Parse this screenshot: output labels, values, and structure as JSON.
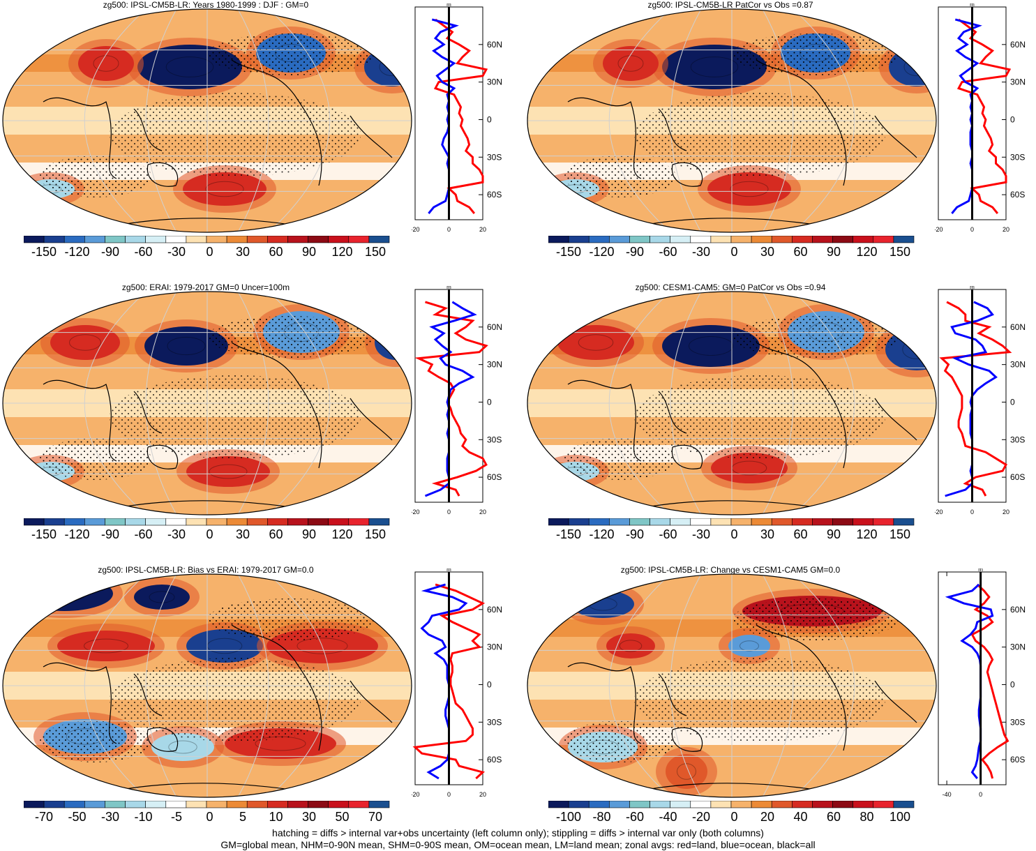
{
  "footer": {
    "line1": "hatching = diffs > internal var+obs uncertainty (left column only); stippling = diffs > internal var only (both columns)",
    "line2": "GM=global mean, NHM=0-90N mean, SHM=0-90S mean, OM=ocean mean, LM=land mean; zonal avgs: red=land, blue=ocean, black=all"
  },
  "colors": {
    "scale": [
      "#0b1a5c",
      "#1a3f8f",
      "#2a6bc0",
      "#5a9bd8",
      "#7fc6c6",
      "#a8d8e8",
      "#d6eff5",
      "#ffffff",
      "#fde2b3",
      "#f6b26b",
      "#ec8a36",
      "#e0582a",
      "#d62b21",
      "#b8121c",
      "#8c0a14",
      "#c9101c",
      "#e8232d",
      "#1a4f8f"
    ],
    "land": "#ff0000",
    "ocean": "#0000ff",
    "all": "#000000"
  },
  "chart_data": [
    {
      "type": "heatmap",
      "title": "zg500: IPSL-CM5B-LR: Years 1980-1999 : DJF : GM=0",
      "colorbar_labels": [
        "-150",
        "-120",
        "-90",
        "-60",
        "-30",
        "0",
        "30",
        "60",
        "90",
        "120",
        "150"
      ],
      "profile": {
        "unit": "m",
        "xticks": [
          "-20",
          "0",
          "20"
        ],
        "yticks": [
          "60N",
          "30N",
          "0",
          "30S",
          "60S"
        ],
        "lat": [
          80,
          75,
          70,
          65,
          60,
          55,
          50,
          45,
          40,
          35,
          30,
          25,
          20,
          15,
          10,
          5,
          0,
          -5,
          -10,
          -15,
          -20,
          -25,
          -30,
          -35,
          -40,
          -45,
          -50,
          -55,
          -60,
          -65,
          -70,
          -75
        ],
        "ocean": [
          -10,
          4,
          -5,
          -8,
          -3,
          -9,
          -4,
          3,
          -2,
          -7,
          -4,
          3,
          -1,
          0,
          -1,
          0,
          -1,
          0,
          -1,
          -3,
          -4,
          -2,
          0,
          -1,
          0,
          0,
          0,
          0,
          -1,
          -2,
          -9,
          -12
        ],
        "land": [
          -8,
          -3,
          2,
          -1,
          6,
          12,
          8,
          5,
          22,
          20,
          -6,
          -8,
          3,
          5,
          7,
          6,
          8,
          7,
          9,
          11,
          12,
          10,
          14,
          14,
          18,
          20,
          20,
          0,
          4,
          5,
          12,
          15
        ]
      }
    },
    {
      "type": "heatmap",
      "title": "zg500: IPSL-CM5B-LR PatCor vs Obs =0.87",
      "colorbar_labels": [
        "-150",
        "-120",
        "-90",
        "-60",
        "-30",
        "0",
        "30",
        "60",
        "90",
        "120",
        "150"
      ],
      "profile": {
        "unit": "m",
        "xticks": [
          "-20",
          "0",
          "20"
        ],
        "yticks": [
          "60N",
          "30N",
          "0",
          "30S",
          "60S"
        ],
        "lat": [
          80,
          75,
          70,
          65,
          60,
          55,
          50,
          45,
          40,
          35,
          30,
          25,
          20,
          15,
          10,
          5,
          0,
          -5,
          -10,
          -15,
          -20,
          -25,
          -30,
          -35,
          -40,
          -45,
          -50,
          -55,
          -60,
          -65,
          -70,
          -75
        ],
        "ocean": [
          -10,
          4,
          -5,
          -8,
          -3,
          -9,
          -4,
          3,
          -2,
          -7,
          -4,
          3,
          -1,
          0,
          -1,
          0,
          -1,
          0,
          -1,
          -1,
          -1,
          0,
          0,
          -1,
          0,
          0,
          0,
          0,
          -1,
          -2,
          -9,
          -12
        ],
        "land": [
          -8,
          -3,
          2,
          -1,
          6,
          12,
          8,
          5,
          22,
          20,
          -6,
          -8,
          3,
          5,
          7,
          6,
          8,
          7,
          9,
          11,
          12,
          10,
          14,
          14,
          18,
          20,
          20,
          0,
          4,
          5,
          12,
          15
        ]
      }
    },
    {
      "type": "heatmap",
      "title": "zg500: ERAI: 1979-2017 GM=0 Uncer=100m",
      "colorbar_labels": [
        "-150",
        "-120",
        "-90",
        "-60",
        "-30",
        "0",
        "30",
        "60",
        "90",
        "120",
        "150"
      ],
      "profile": {
        "unit": "m",
        "xticks": [
          "-20",
          "0",
          "20"
        ],
        "yticks": [
          "60N",
          "30N",
          "0",
          "30S",
          "60S"
        ],
        "lat": [
          80,
          75,
          70,
          65,
          60,
          55,
          50,
          45,
          40,
          35,
          30,
          25,
          20,
          15,
          10,
          5,
          0,
          -5,
          -10,
          -15,
          -20,
          -25,
          -30,
          -35,
          -40,
          -45,
          -50,
          -55,
          -60,
          -65,
          -70,
          -75
        ],
        "ocean": [
          2,
          8,
          15,
          3,
          -10,
          -3,
          -8,
          -4,
          1,
          -5,
          -2,
          8,
          14,
          6,
          1,
          0,
          -1,
          0,
          -1,
          0,
          0,
          -1,
          0,
          0,
          0,
          -1,
          -1,
          -1,
          0,
          0,
          -5,
          -14
        ],
        "land": [
          -14,
          -2,
          -8,
          14,
          10,
          4,
          10,
          22,
          18,
          -18,
          -10,
          -12,
          -6,
          1,
          3,
          1,
          -1,
          1,
          2,
          4,
          6,
          7,
          10,
          8,
          12,
          20,
          22,
          16,
          5,
          -8,
          4,
          6
        ]
      }
    },
    {
      "type": "heatmap",
      "title": "zg500: CESM1-CAM5: GM=0 PatCor vs Obs =0.94",
      "colorbar_labels": [
        "-150",
        "-120",
        "-90",
        "-60",
        "-30",
        "0",
        "30",
        "60",
        "90",
        "120",
        "150"
      ],
      "profile": {
        "unit": "m",
        "xticks": [
          "-20",
          "0",
          "20"
        ],
        "yticks": [
          "60N",
          "30N",
          "0",
          "30S",
          "60S"
        ],
        "lat": [
          80,
          75,
          70,
          65,
          60,
          55,
          50,
          45,
          40,
          35,
          30,
          25,
          20,
          15,
          10,
          5,
          0,
          -5,
          -10,
          -15,
          -20,
          -25,
          -30,
          -35,
          -40,
          -45,
          -50,
          -55,
          -60,
          -65,
          -70,
          -75
        ],
        "ocean": [
          1,
          9,
          12,
          3,
          -12,
          -10,
          2,
          6,
          8,
          -10,
          -2,
          10,
          14,
          8,
          3,
          0,
          -1,
          0,
          -1,
          -1,
          -1,
          -1,
          0,
          0,
          0,
          0,
          0,
          -1,
          0,
          0,
          -4,
          -16
        ],
        "land": [
          -15,
          -8,
          -4,
          -4,
          10,
          4,
          12,
          18,
          22,
          -18,
          -14,
          -16,
          -12,
          -10,
          -8,
          -6,
          -6,
          -6,
          -7,
          -8,
          -8,
          -6,
          -5,
          -4,
          8,
          14,
          20,
          18,
          2,
          -4,
          6,
          8
        ]
      }
    },
    {
      "type": "heatmap",
      "title": "zg500: IPSL-CM5B-LR: Bias vs ERAI: 1979-2017 GM=0.0",
      "colorbar_labels": [
        "-70",
        "-50",
        "-30",
        "-10",
        "-5",
        "0",
        "5",
        "10",
        "30",
        "50",
        "70"
      ],
      "profile": {
        "unit": "m",
        "xticks": [
          "-20",
          "0",
          "20"
        ],
        "yticks": [
          "60N",
          "30N",
          "0",
          "30S",
          "60S"
        ],
        "lat": [
          80,
          75,
          70,
          65,
          60,
          55,
          50,
          45,
          40,
          35,
          30,
          25,
          20,
          15,
          10,
          5,
          0,
          -5,
          -10,
          -15,
          -20,
          -25,
          -30,
          -35,
          -40,
          -45,
          -50,
          -55,
          -60,
          -65,
          -70,
          -75
        ],
        "ocean": [
          -2,
          -14,
          2,
          10,
          6,
          -10,
          -12,
          -16,
          -12,
          -4,
          -2,
          -8,
          -3,
          -1,
          -1,
          -1,
          0,
          0,
          0,
          -1,
          -2,
          -2,
          -1,
          0,
          0,
          0,
          0,
          0,
          -1,
          -5,
          -12,
          -6
        ],
        "land": [
          -8,
          4,
          12,
          20,
          14,
          -4,
          2,
          10,
          18,
          14,
          18,
          2,
          1,
          2,
          2,
          1,
          1,
          2,
          3,
          4,
          8,
          10,
          12,
          14,
          14,
          10,
          -20,
          -16,
          4,
          6,
          20,
          16
        ]
      }
    },
    {
      "type": "heatmap",
      "title": "zg500: IPSL-CM5B-LR: Change vs CESM1-CAM5 GM=0.0",
      "colorbar_labels": [
        "-100",
        "-80",
        "-60",
        "-40",
        "-20",
        "0",
        "20",
        "40",
        "60",
        "80",
        "100"
      ],
      "profile": {
        "unit": "m",
        "xticks": [
          "-40",
          "0"
        ],
        "yticks": [
          "60N",
          "30N",
          "0",
          "30S",
          "60S"
        ],
        "lat": [
          80,
          75,
          70,
          65,
          60,
          55,
          50,
          45,
          40,
          35,
          30,
          25,
          20,
          15,
          10,
          5,
          0,
          -5,
          -10,
          -15,
          -20,
          -25,
          -30,
          -35,
          -40,
          -45,
          -50,
          -55,
          -60,
          -65,
          -70,
          -75
        ],
        "ocean": [
          -2,
          -10,
          -38,
          -20,
          12,
          14,
          -4,
          -6,
          -12,
          -22,
          -10,
          -4,
          -1,
          0,
          0,
          0,
          0,
          0,
          0,
          -1,
          -2,
          -2,
          -1,
          0,
          0,
          0,
          -2,
          -3,
          -4,
          -6,
          -10,
          -4
        ],
        "land": [
          -4,
          4,
          10,
          4,
          -6,
          8,
          14,
          4,
          -10,
          -6,
          4,
          10,
          14,
          10,
          8,
          10,
          12,
          14,
          16,
          18,
          20,
          22,
          24,
          26,
          28,
          32,
          20,
          10,
          2,
          8,
          12,
          14
        ]
      }
    }
  ]
}
